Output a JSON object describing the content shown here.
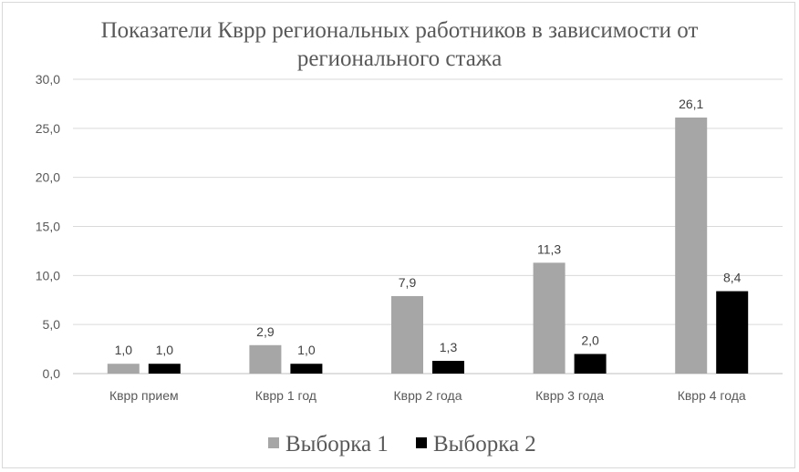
{
  "chart_data": {
    "type": "bar",
    "title_lines": [
      "Показатели Кврр региональных работников в зависимости от",
      "регионального стажа"
    ],
    "categories": [
      "Кврр прием",
      "Кврр 1 год",
      "Кврр 2 года",
      "Кврр 3 года",
      "Кврр 4 года"
    ],
    "series": [
      {
        "name": "Выборка 1",
        "color": "#a6a6a6",
        "values": [
          1.0,
          2.9,
          7.9,
          11.3,
          26.1
        ],
        "labels": [
          "1,0",
          "2,9",
          "7,9",
          "11,3",
          "26,1"
        ]
      },
      {
        "name": "Выборка 2",
        "color": "#000000",
        "values": [
          1.0,
          1.0,
          1.3,
          2.0,
          8.4
        ],
        "labels": [
          "1,0",
          "1,0",
          "1,3",
          "2,0",
          "8,4"
        ]
      }
    ],
    "y_ticks": [
      "0,0",
      "5,0",
      "10,0",
      "15,0",
      "20,0",
      "25,0",
      "30,0"
    ],
    "ylim": [
      0,
      30
    ],
    "grid": true,
    "legend_position": "bottom"
  }
}
